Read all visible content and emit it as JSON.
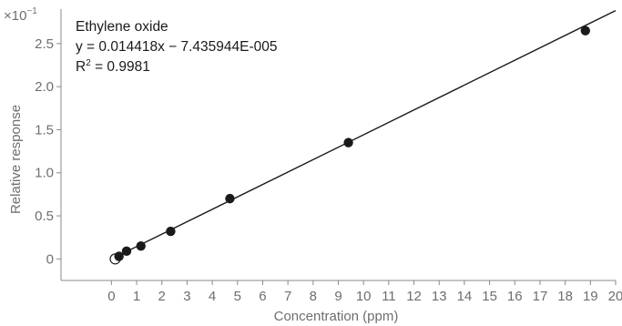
{
  "chart_data": {
    "type": "scatter",
    "xlabel": "Concentration (ppm)",
    "ylabel": "Relative response",
    "y_multiplier_label": "×10",
    "y_multiplier_exponent": "−1",
    "xlim": [
      -2,
      20
    ],
    "ylim": [
      -0.25,
      2.9
    ],
    "x_ticks": [
      0,
      1,
      2,
      3,
      4,
      5,
      6,
      7,
      8,
      9,
      10,
      11,
      12,
      13,
      14,
      15,
      16,
      17,
      18,
      19,
      20
    ],
    "y_ticks": [
      0,
      0.5,
      1.0,
      1.5,
      2.0,
      2.5
    ],
    "y_tick_labels": [
      "0",
      "0.5",
      "1.0",
      "1.5",
      "2.0",
      "2.5"
    ],
    "annotation": {
      "compound": "Ethylene oxide",
      "equation": "y = 0.014418x − 7.435944E-005",
      "r2_prefix": "R",
      "r2_sup": "2",
      "r2_value": " = 0.9981"
    },
    "series": [
      {
        "points": [
          {
            "x": 0.3,
            "y": 0.03
          },
          {
            "x": 0.6,
            "y": 0.09
          },
          {
            "x": 1.17,
            "y": 0.15
          },
          {
            "x": 2.35,
            "y": 0.32
          },
          {
            "x": 4.7,
            "y": 0.7
          },
          {
            "x": 9.4,
            "y": 1.35
          },
          {
            "x": 18.8,
            "y": 2.65
          }
        ]
      }
    ],
    "excluded_points": [
      {
        "x": 0.15,
        "y": 0.0
      }
    ],
    "fit_line": {
      "slope": 0.14418,
      "intercept": -0.0007435944,
      "x_range": [
        0,
        20
      ]
    },
    "colors": {
      "points": "#1a1a1a",
      "line": "#1a1a1a",
      "axis": "#8a8a8a",
      "text": "#6e6e6e"
    }
  }
}
